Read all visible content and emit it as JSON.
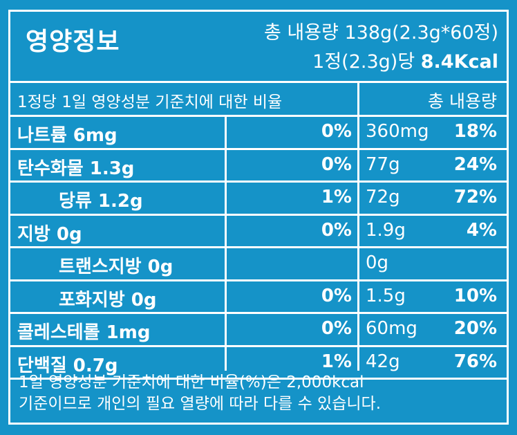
{
  "header": {
    "title": "영양정보",
    "total": "총 내용량 138g(2.3g*60정)",
    "per_prefix": "1정(2.3g)당",
    "per_kcal": "8.4Kcal"
  },
  "columns": {
    "left": "1정당 1일 영양성분 기준치에 대한 비율",
    "right": "총 내용량"
  },
  "rows": [
    {
      "name": "나트륨 6mg",
      "indent": false,
      "pct": "0%",
      "amount": "360mg",
      "total_pct": "18%"
    },
    {
      "name": "탄수화물 1.3g",
      "indent": false,
      "pct": "0%",
      "amount": "77g",
      "total_pct": "24%"
    },
    {
      "name": "당류 1.2g",
      "indent": true,
      "pct": "1%",
      "amount": "72g",
      "total_pct": "72%"
    },
    {
      "name": "지방 0g",
      "indent": false,
      "pct": "0%",
      "amount": "1.9g",
      "total_pct": "4%"
    },
    {
      "name": "트랜스지방 0g",
      "indent": true,
      "pct": "",
      "amount": "0g",
      "total_pct": ""
    },
    {
      "name": "포화지방 0g",
      "indent": true,
      "pct": "0%",
      "amount": "1.5g",
      "total_pct": "10%"
    },
    {
      "name": "콜레스테롤 1mg",
      "indent": false,
      "pct": "0%",
      "amount": "60mg",
      "total_pct": "20%"
    },
    {
      "name": "단백질 0.7g",
      "indent": false,
      "pct": "1%",
      "amount": "42g",
      "total_pct": "76%"
    }
  ],
  "footnote": {
    "line1": "1일 영양성분 기준치에 대한 비율(%)은 2,000kcal",
    "line2": "기준이므로 개인의 필요 열량에 따라 다를 수 있습니다."
  },
  "colors": {
    "background": "#1593c8",
    "text": "#ffffff"
  }
}
